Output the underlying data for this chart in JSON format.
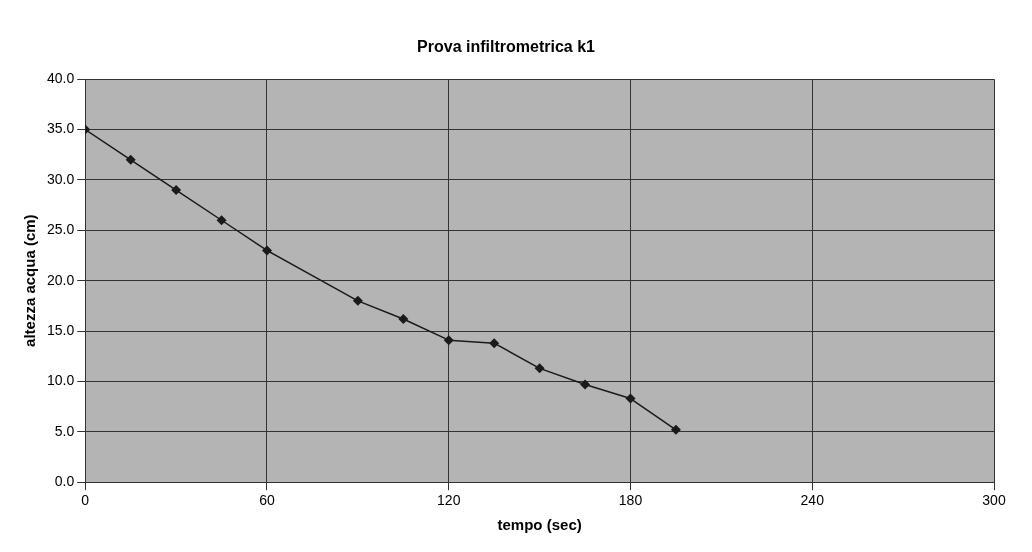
{
  "chart_data": {
    "type": "line",
    "title": "Prova infiltrometrica k1",
    "xlabel": "tempo (sec)",
    "ylabel": "altezza acqua (cm)",
    "x": [
      0,
      15,
      30,
      45,
      60,
      90,
      105,
      120,
      135,
      150,
      165,
      180,
      195
    ],
    "series": [
      {
        "color": "#1a1a1a",
        "values": [
          35,
          32,
          29,
          26,
          23,
          18,
          16.2,
          14.1,
          13.8,
          11.3,
          9.7,
          8.3,
          5.2
        ]
      }
    ],
    "xlim": [
      0,
      300
    ],
    "xticks": [
      0,
      60,
      120,
      180,
      240,
      300
    ],
    "ylim": [
      0,
      40
    ],
    "yticks": [
      {
        "value": 0,
        "label": "0.0"
      },
      {
        "value": 5,
        "label": "5.0"
      },
      {
        "value": 10,
        "label": "10.0"
      },
      {
        "value": 15,
        "label": "15.0"
      },
      {
        "value": 20,
        "label": "20.0"
      },
      {
        "value": 25,
        "label": "25.0"
      },
      {
        "value": 30,
        "label": "30.0"
      },
      {
        "value": 35,
        "label": "35.0"
      },
      {
        "value": 40,
        "label": "40.0"
      }
    ],
    "grid": true,
    "legend": false,
    "marker": "diamond",
    "line_style": "solid"
  }
}
